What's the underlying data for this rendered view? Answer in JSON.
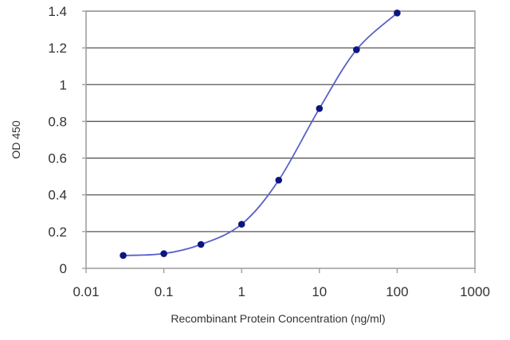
{
  "chart_data": {
    "type": "line",
    "title": "",
    "xlabel": "Recombinant Protein Concentration (ng/ml)",
    "ylabel": "OD 450",
    "x_scale": "log",
    "xlim": [
      0.01,
      1000
    ],
    "ylim": [
      0,
      1.4
    ],
    "x_ticks": [
      "0.01",
      "0.1",
      "1",
      "10",
      "100",
      "1000"
    ],
    "y_ticks": [
      "0",
      "0.2",
      "0.4",
      "0.6",
      "0.8",
      "1",
      "1.2",
      "1.4"
    ],
    "grid": "horizontal",
    "legend": "none",
    "series": [
      {
        "x": [
          0.03,
          0.1,
          0.3,
          1,
          3,
          10,
          30,
          100
        ],
        "y": [
          0.07,
          0.08,
          0.13,
          0.24,
          0.48,
          0.87,
          1.19,
          1.39
        ]
      }
    ],
    "colors": {
      "line": "#5a5fc8",
      "marker": "#0a1680",
      "grid": "#555555",
      "frame": "#9a9a9a",
      "text": "#333333"
    }
  }
}
